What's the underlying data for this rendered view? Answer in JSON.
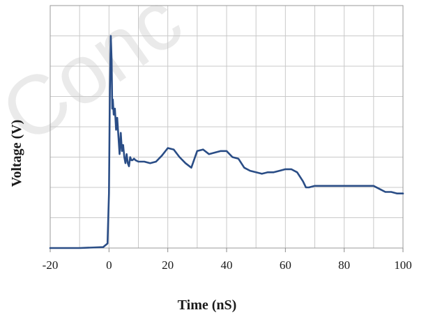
{
  "chart_data": {
    "type": "line",
    "title": "",
    "xlabel": "Time  (nS)",
    "ylabel": "Voltage (V)",
    "xlim": [
      -20,
      100
    ],
    "ylim": [
      0,
      8
    ],
    "x_ticks": [
      -20,
      0,
      20,
      40,
      60,
      80,
      100
    ],
    "x_tick_labels": [
      "-20",
      "0",
      "20",
      "40",
      "60",
      "80",
      "100"
    ],
    "y_tick_labels": [],
    "grid": true,
    "line_color": "#2a4d86",
    "watermark_text": "Conc",
    "series": [
      {
        "x": [
          -20,
          -10,
          -2,
          -0.5,
          0,
          0.3,
          0.6,
          0.9,
          1.1,
          1.3,
          1.6,
          2.0,
          2.4,
          2.8,
          3.2,
          3.6,
          4.0,
          4.4,
          4.8,
          5.2,
          5.6,
          6.0,
          6.4,
          6.8,
          7.2,
          7.6,
          8.0,
          8.5,
          9,
          10,
          12,
          14,
          16,
          18,
          20,
          22,
          24,
          26,
          28,
          30,
          32,
          34,
          36,
          38,
          40,
          42,
          44,
          46,
          48,
          50,
          52,
          54,
          56,
          58,
          60,
          62,
          64,
          66,
          67,
          68,
          70,
          72,
          74,
          76,
          78,
          80,
          82,
          84,
          86,
          88,
          90,
          92,
          94,
          96,
          98,
          100
        ],
        "y": [
          0,
          0,
          0.03,
          0.15,
          1.8,
          5.2,
          7.0,
          6.2,
          4.6,
          4.9,
          4.4,
          4.6,
          3.9,
          4.3,
          3.7,
          3.1,
          3.8,
          3.2,
          3.4,
          3.0,
          2.8,
          3.1,
          2.8,
          2.7,
          3.0,
          2.9,
          2.9,
          2.95,
          2.9,
          2.85,
          2.85,
          2.8,
          2.85,
          3.05,
          3.3,
          3.25,
          3.0,
          2.8,
          2.65,
          3.2,
          3.25,
          3.1,
          3.15,
          3.2,
          3.2,
          3.0,
          2.95,
          2.65,
          2.55,
          2.5,
          2.45,
          2.5,
          2.5,
          2.55,
          2.6,
          2.6,
          2.5,
          2.2,
          2.0,
          2.0,
          2.05,
          2.05,
          2.05,
          2.05,
          2.05,
          2.05,
          2.05,
          2.05,
          2.05,
          2.05,
          2.05,
          1.95,
          1.85,
          1.85,
          1.8,
          1.8
        ]
      }
    ]
  }
}
